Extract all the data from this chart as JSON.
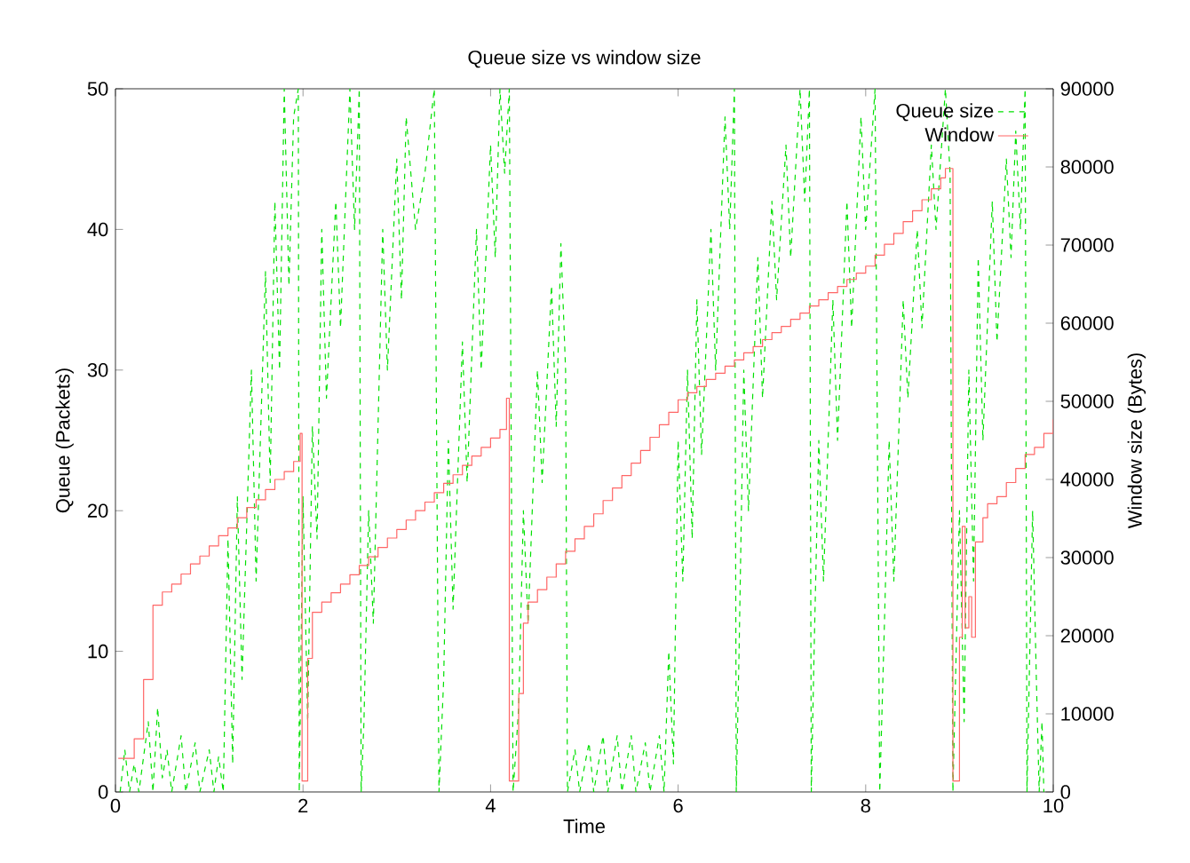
{
  "chart_data": {
    "type": "line",
    "title": "Queue size vs window size",
    "xlabel": "Time",
    "ylabel": "Queue (Packets)",
    "y2label": "Window size (Bytes)",
    "xlim": [
      0,
      10
    ],
    "xticks": [
      0,
      2,
      4,
      6,
      8,
      10
    ],
    "ylim": [
      0,
      50
    ],
    "yticks": [
      0,
      10,
      20,
      30,
      40,
      50
    ],
    "y2lim": [
      0,
      90000
    ],
    "y2ticks": [
      0,
      10000,
      20000,
      30000,
      40000,
      50000,
      60000,
      70000,
      80000,
      90000
    ],
    "legend": "top right",
    "grid": false,
    "series": [
      {
        "name": "Queue size",
        "line_style": "dashed",
        "color": "#00e000",
        "x": [
          0.05,
          0.1,
          0.15,
          0.2,
          0.25,
          0.35,
          0.4,
          0.45,
          0.5,
          0.55,
          0.6,
          0.7,
          0.75,
          0.85,
          0.9,
          1.0,
          1.05,
          1.1,
          1.15,
          1.2,
          1.25,
          1.3,
          1.35,
          1.45,
          1.5,
          1.6,
          1.65,
          1.7,
          1.75,
          1.8,
          1.85,
          1.9,
          1.95,
          1.96,
          2.0,
          2.05,
          2.1,
          2.15,
          2.2,
          2.25,
          2.35,
          2.4,
          2.5,
          2.55,
          2.6,
          2.62,
          2.65,
          2.7,
          2.75,
          2.85,
          2.9,
          3.0,
          3.05,
          3.1,
          3.2,
          3.3,
          3.4,
          3.45,
          3.5,
          3.55,
          3.6,
          3.7,
          3.75,
          3.85,
          3.9,
          4.0,
          4.05,
          4.1,
          4.15,
          4.2,
          4.24,
          4.3,
          4.35,
          4.4,
          4.5,
          4.55,
          4.65,
          4.7,
          4.75,
          4.8,
          4.82,
          4.9,
          4.95,
          5.05,
          5.1,
          5.2,
          5.25,
          5.35,
          5.4,
          5.5,
          5.55,
          5.65,
          5.7,
          5.8,
          5.85,
          5.9,
          5.95,
          6.0,
          6.05,
          6.1,
          6.15,
          6.2,
          6.25,
          6.35,
          6.4,
          6.5,
          6.55,
          6.6,
          6.62,
          6.65,
          6.7,
          6.75,
          6.85,
          6.9,
          7.0,
          7.05,
          7.15,
          7.2,
          7.3,
          7.35,
          7.4,
          7.42,
          7.45,
          7.5,
          7.55,
          7.65,
          7.7,
          7.8,
          7.85,
          7.95,
          8.0,
          8.1,
          8.15,
          8.2,
          8.25,
          8.3,
          8.4,
          8.45,
          8.55,
          8.6,
          8.7,
          8.75,
          8.85,
          8.9,
          8.93,
          9.0,
          9.05,
          9.1,
          9.15,
          9.2,
          9.25,
          9.35,
          9.4,
          9.5,
          9.55,
          9.6,
          9.65,
          9.7,
          9.72,
          9.75,
          9.78,
          9.82,
          9.85,
          9.88,
          9.9
        ],
        "values": [
          0,
          3,
          0,
          2,
          0,
          5,
          0,
          6,
          1,
          3,
          0,
          4,
          0,
          3.5,
          0,
          3,
          0,
          2.5,
          0,
          18,
          2,
          21,
          8,
          30,
          15,
          37,
          22,
          42,
          30,
          50,
          36,
          48,
          50,
          0,
          21,
          5,
          26,
          18,
          40,
          28,
          42,
          33,
          50,
          40,
          50,
          0,
          5,
          20,
          12,
          40,
          30,
          45,
          35,
          48,
          40,
          44,
          50,
          0,
          8,
          25,
          13,
          32,
          22,
          40,
          30,
          46,
          38,
          50,
          44,
          50,
          0,
          6,
          20,
          12,
          30,
          22,
          36,
          26,
          39,
          30,
          0,
          3,
          0,
          3.5,
          0,
          4,
          0,
          4,
          0,
          4,
          0,
          3.5,
          0,
          4,
          0,
          10,
          2,
          25,
          15,
          30,
          18,
          35,
          24,
          40,
          30,
          48,
          40,
          50,
          0,
          10,
          30,
          20,
          38,
          28,
          42,
          35,
          46,
          38,
          50,
          42,
          50,
          0,
          10,
          25,
          15,
          35,
          25,
          42,
          33,
          48,
          40,
          50,
          0,
          12,
          25,
          15,
          35,
          28,
          40,
          33,
          46,
          40,
          50,
          44,
          0,
          20,
          5,
          30,
          15,
          38,
          25,
          42,
          32,
          45,
          38,
          47,
          40,
          50,
          0,
          10,
          20,
          8,
          0,
          5,
          0
        ]
      },
      {
        "name": "Window",
        "type": "step",
        "axis": "y2",
        "line_style": "solid",
        "color": "#ff6666",
        "x": [
          0.03,
          0.2,
          0.3,
          0.4,
          0.5,
          0.6,
          0.7,
          0.8,
          0.9,
          1.0,
          1.1,
          1.2,
          1.3,
          1.4,
          1.5,
          1.6,
          1.7,
          1.8,
          1.9,
          1.97,
          1.99,
          2.05,
          2.1,
          2.2,
          2.3,
          2.4,
          2.5,
          2.6,
          2.7,
          2.8,
          2.9,
          3.0,
          3.1,
          3.2,
          3.3,
          3.4,
          3.5,
          3.6,
          3.7,
          3.8,
          3.9,
          4.0,
          4.1,
          4.17,
          4.2,
          4.3,
          4.35,
          4.4,
          4.5,
          4.6,
          4.7,
          4.8,
          4.9,
          5.0,
          5.1,
          5.2,
          5.3,
          5.4,
          5.5,
          5.6,
          5.7,
          5.8,
          5.9,
          6.0,
          6.1,
          6.2,
          6.3,
          6.4,
          6.5,
          6.6,
          6.7,
          6.8,
          6.9,
          7.0,
          7.1,
          7.2,
          7.3,
          7.4,
          7.5,
          7.6,
          7.7,
          7.8,
          7.9,
          8.0,
          8.1,
          8.2,
          8.3,
          8.4,
          8.5,
          8.6,
          8.7,
          8.8,
          8.85,
          8.93,
          9.0,
          9.03,
          9.06,
          9.1,
          9.13,
          9.17,
          9.25,
          9.3,
          9.4,
          9.5,
          9.6,
          9.7,
          9.8,
          9.9,
          10.0
        ],
        "values": [
          4300,
          6800,
          14400,
          23900,
          25600,
          26600,
          27900,
          29200,
          30200,
          31500,
          32800,
          33800,
          35100,
          36400,
          37400,
          38700,
          40000,
          41000,
          42300,
          45900,
          1400,
          17100,
          23000,
          24300,
          25500,
          26600,
          27800,
          29000,
          30100,
          31300,
          32500,
          33600,
          34800,
          36000,
          37100,
          38300,
          39500,
          40600,
          41800,
          43000,
          44100,
          45300,
          46400,
          50400,
          1400,
          12600,
          21600,
          24300,
          25900,
          27500,
          29200,
          30800,
          32400,
          34000,
          35600,
          37300,
          38900,
          40500,
          42100,
          43700,
          45400,
          47000,
          48600,
          50200,
          51100,
          51900,
          52800,
          53600,
          54500,
          55300,
          56200,
          57000,
          57900,
          58800,
          59600,
          60500,
          61300,
          62200,
          63000,
          63900,
          64700,
          65600,
          66400,
          67300,
          68700,
          70100,
          71500,
          73000,
          74400,
          75800,
          77200,
          78600,
          79800,
          1400,
          19800,
          34000,
          21000,
          25000,
          19800,
          32000,
          35100,
          36900,
          37800,
          39600,
          41400,
          43200,
          44100,
          45900,
          47700
        ]
      }
    ]
  }
}
